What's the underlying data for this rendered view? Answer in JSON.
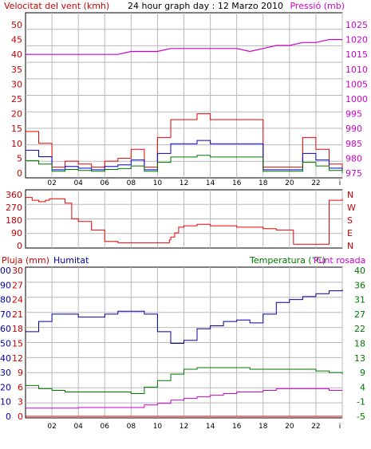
{
  "title": "24 hour graph day : 12 Marzo 2010",
  "colors": {
    "wind": "#ee0000",
    "gust": "#ee0000",
    "avg_wind": "#0000cc",
    "min_wind": "#007700",
    "pressure": "#cc00cc",
    "direction": "#ee0000",
    "humidity": "#0000aa",
    "temperature": "#007700",
    "dewpoint": "#cc00cc",
    "rain": "#ee0000",
    "grid": "#b8b8b8",
    "axis_red": "#cc0000",
    "axis_magenta": "#cc00cc",
    "axis_blue": "#0000aa",
    "axis_green": "#007700"
  },
  "top_panel": {
    "left_label": "Velocitat del vent (kmh)",
    "right_label": "Pressió (mb)",
    "left_ticks": [
      "0",
      "5",
      "10",
      "15",
      "20",
      "25",
      "30",
      "35",
      "40",
      "45",
      "50"
    ],
    "right_ticks": [
      "975",
      "980",
      "985",
      "990",
      "995",
      "1000",
      "1005",
      "1010",
      "1015",
      "1020",
      "1025"
    ]
  },
  "middle_panel": {
    "left_ticks": [
      "0",
      "90",
      "180",
      "270",
      "360"
    ],
    "right_ticks": [
      "N",
      "E",
      "S",
      "W",
      "N"
    ]
  },
  "bottom_panel": {
    "label_rain": "Pluja (mm)",
    "label_humidity": "Humitat",
    "label_temperature": "Temperatura (°C)",
    "label_dewpoint": "Punt rosada",
    "rain_ticks": [
      "0",
      "10",
      "20",
      "30",
      "40",
      "50",
      "60",
      "70",
      "80",
      "90",
      "100"
    ],
    "humidity_ticks": [
      "0",
      "3",
      "6",
      "9",
      "12",
      "15",
      "18",
      "21",
      "24",
      "27",
      "30"
    ],
    "temp_ticks": [
      "-5",
      "-1",
      "4",
      "9",
      "13",
      "18",
      "22",
      "27",
      "31",
      "36",
      "40"
    ]
  },
  "x_ticks": [
    "02",
    "04",
    "06",
    "08",
    "10",
    "12",
    "14",
    "16",
    "18",
    "20",
    "22",
    "i"
  ],
  "chart_data": [
    {
      "type": "line",
      "title": "24 hour graph day : 12 Marzo 2010",
      "x": [
        0,
        1,
        2,
        3,
        4,
        5,
        6,
        7,
        8,
        9,
        10,
        11,
        12,
        13,
        14,
        15,
        16,
        17,
        18,
        19,
        20,
        21,
        22,
        23,
        24
      ],
      "series": [
        {
          "name": "Velocitat del vent (kmh)",
          "values": [
            14,
            10,
            2,
            4,
            3,
            2,
            4,
            5,
            8,
            2,
            12,
            18,
            18,
            20,
            18,
            18,
            18,
            18,
            2,
            2,
            2,
            12,
            8,
            3,
            0
          ]
        },
        {
          "name": "Pressió (mb)",
          "values": [
            1015,
            1015,
            1015,
            1015,
            1015,
            1015,
            1015,
            1015,
            1016,
            1016,
            1016,
            1017,
            1017,
            1017,
            1017,
            1017,
            1017,
            1016,
            1017,
            1018,
            1018,
            1019,
            1019,
            1020,
            1020
          ]
        }
      ],
      "xlabel": "",
      "ylabel": "Velocitat del vent (kmh)",
      "ylim": [
        0,
        50
      ],
      "y2label": "Pressió (mb)",
      "y2lim": [
        975,
        1025
      ],
      "grid": true
    },
    {
      "type": "line",
      "x": [
        0,
        0.5,
        1,
        1.5,
        1.8,
        2,
        3,
        3.5,
        4,
        5,
        6,
        7,
        8,
        9,
        9.5,
        10,
        10.4,
        10.9,
        11,
        11.3,
        11.6,
        12,
        13,
        14,
        15,
        16,
        17,
        18,
        19,
        20,
        20.3,
        21,
        22,
        22.7,
        23,
        24
      ],
      "series": [
        {
          "name": "Wind direction",
          "values": [
            340,
            320,
            310,
            320,
            330,
            330,
            300,
            190,
            170,
            110,
            30,
            20,
            20,
            20,
            20,
            20,
            20,
            40,
            60,
            90,
            130,
            140,
            150,
            140,
            140,
            130,
            130,
            120,
            110,
            110,
            10,
            10,
            10,
            10,
            320,
            330
          ]
        }
      ],
      "ylim": [
        0,
        360
      ],
      "grid": true
    },
    {
      "type": "line",
      "x": [
        0,
        1,
        2,
        3,
        4,
        5,
        6,
        7,
        8,
        9,
        10,
        11,
        12,
        13,
        14,
        15,
        16,
        17,
        18,
        19,
        20,
        21,
        22,
        23,
        24
      ],
      "series": [
        {
          "name": "Humitat",
          "values": [
            58,
            65,
            70,
            70,
            68,
            68,
            70,
            72,
            72,
            70,
            58,
            50,
            52,
            60,
            62,
            65,
            66,
            64,
            70,
            78,
            80,
            82,
            84,
            86,
            87
          ]
        },
        {
          "name": "Temperatura (°C)",
          "values": [
            4.5,
            3.5,
            3,
            2.5,
            2.5,
            2.5,
            2.5,
            2.5,
            2,
            4,
            6,
            8,
            9.5,
            10,
            10,
            10,
            10,
            9.5,
            9.5,
            9.5,
            9.5,
            9.5,
            9,
            8.5,
            8
          ]
        },
        {
          "name": "Punt rosada",
          "values": [
            -2.5,
            -2.5,
            -2.5,
            -2.5,
            -2.3,
            -2.3,
            -2.3,
            -2.3,
            -2.3,
            -1.5,
            -1,
            0,
            0.5,
            1,
            1.5,
            2,
            2.5,
            2.5,
            3,
            3.5,
            3.5,
            3.5,
            3.5,
            3,
            3
          ]
        },
        {
          "name": "Pluja (mm)",
          "values": [
            0,
            0,
            0,
            0,
            0,
            0,
            0,
            0,
            0,
            0,
            0,
            0,
            0,
            0,
            0,
            0,
            0,
            0,
            0,
            0,
            0,
            0,
            0,
            0,
            0
          ]
        }
      ],
      "ylabel": "Pluja (mm)",
      "ylim": [
        0,
        100
      ],
      "y2label": "Temperatura (°C)",
      "y2lim": [
        -5,
        40
      ],
      "grid": true
    }
  ]
}
